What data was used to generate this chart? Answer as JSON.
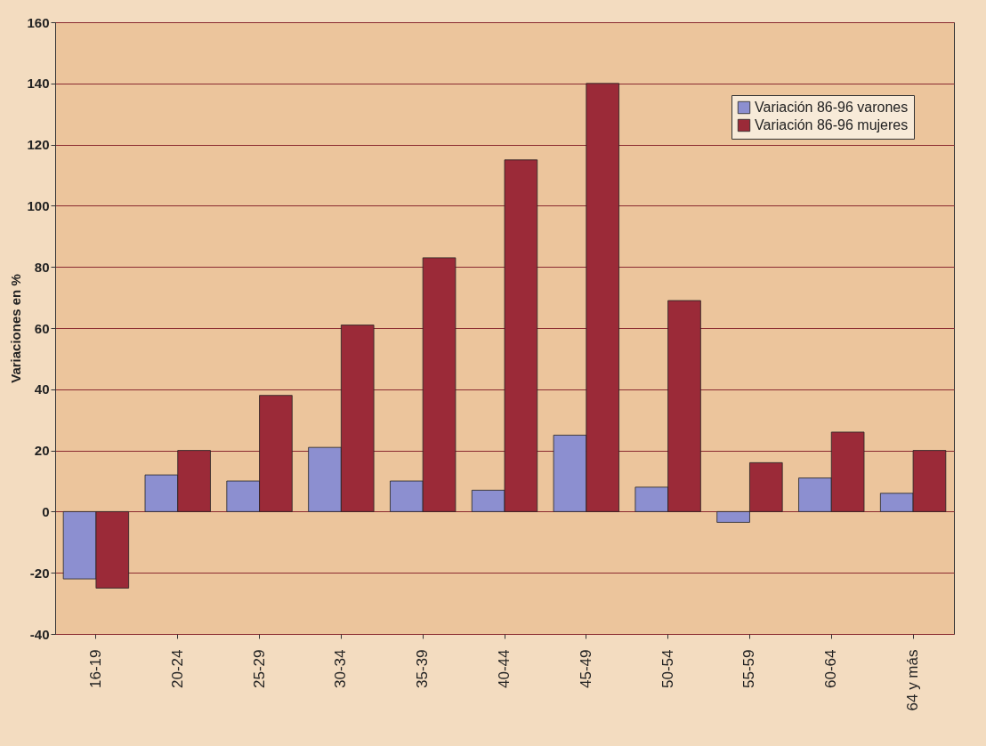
{
  "chart_data": {
    "type": "bar",
    "ylabel": "Variaciones en %",
    "categories": [
      "16-19",
      "20-24",
      "25-29",
      "30-34",
      "35-39",
      "40-44",
      "45-49",
      "50-54",
      "55-59",
      "60-64",
      "64 y más"
    ],
    "series": [
      {
        "name": "Variación 86-96 varones",
        "color": "#8c8fd0",
        "values": [
          -22,
          12,
          10,
          21,
          10,
          7,
          25,
          8,
          -3.5,
          11,
          6
        ]
      },
      {
        "name": "Variación 86-96 mujeres",
        "color": "#9b2a38",
        "values": [
          -25,
          20,
          38,
          61,
          83,
          115,
          140,
          69,
          16,
          26,
          20
        ]
      }
    ],
    "ylim": [
      -40,
      160
    ],
    "yticks": [
      -40,
      -20,
      0,
      20,
      40,
      60,
      80,
      100,
      120,
      140,
      160
    ],
    "grid": true,
    "legend": "top right"
  }
}
